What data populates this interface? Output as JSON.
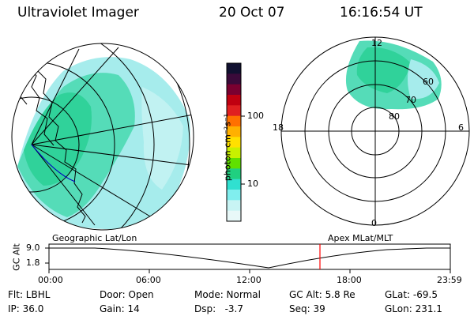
{
  "header": {
    "instrument": "Ultraviolet Imager",
    "date": "20 Oct 07",
    "time": "16:16:54 UT"
  },
  "colorbar": {
    "unit_label": "photon cm⁻²s⁻¹",
    "ticks": [
      "100",
      "10"
    ],
    "colors": [
      "#101030",
      "#3a0a3a",
      "#7a0030",
      "#c00010",
      "#e02020",
      "#ff7000",
      "#ffb000",
      "#ffe000",
      "#c8f000",
      "#60e000",
      "#20d080",
      "#30e0d0",
      "#80eeee",
      "#c8f4f4",
      "#e8f8f8"
    ]
  },
  "polar_plot": {
    "mlt_labels": [
      "12",
      "18",
      "6",
      "0"
    ],
    "lat_labels": [
      "60",
      "70",
      "80"
    ]
  },
  "timeline": {
    "left_label": "Geographic Lat/Lon",
    "right_label": "Apex MLat/MLT",
    "axis_label": "GC Alt",
    "y_ticks": [
      "9.0",
      "1.8"
    ],
    "x_ticks": [
      "00:00",
      "06:00",
      "12:00",
      "18:00",
      "23:59"
    ],
    "marker_color": "#ff0000"
  },
  "status": {
    "filter": "Flt: LBHL",
    "ip": "IP: 36.0",
    "door": "Door: Open",
    "gain": "Gain: 14",
    "mode": "Mode: Normal",
    "dsp": "Dsp:   -3.7",
    "gc_alt": "GC Alt: 5.8 Re",
    "seq": "Seq: 39",
    "glat": "GLat: -69.5",
    "glon": "GLon: 231.1"
  }
}
